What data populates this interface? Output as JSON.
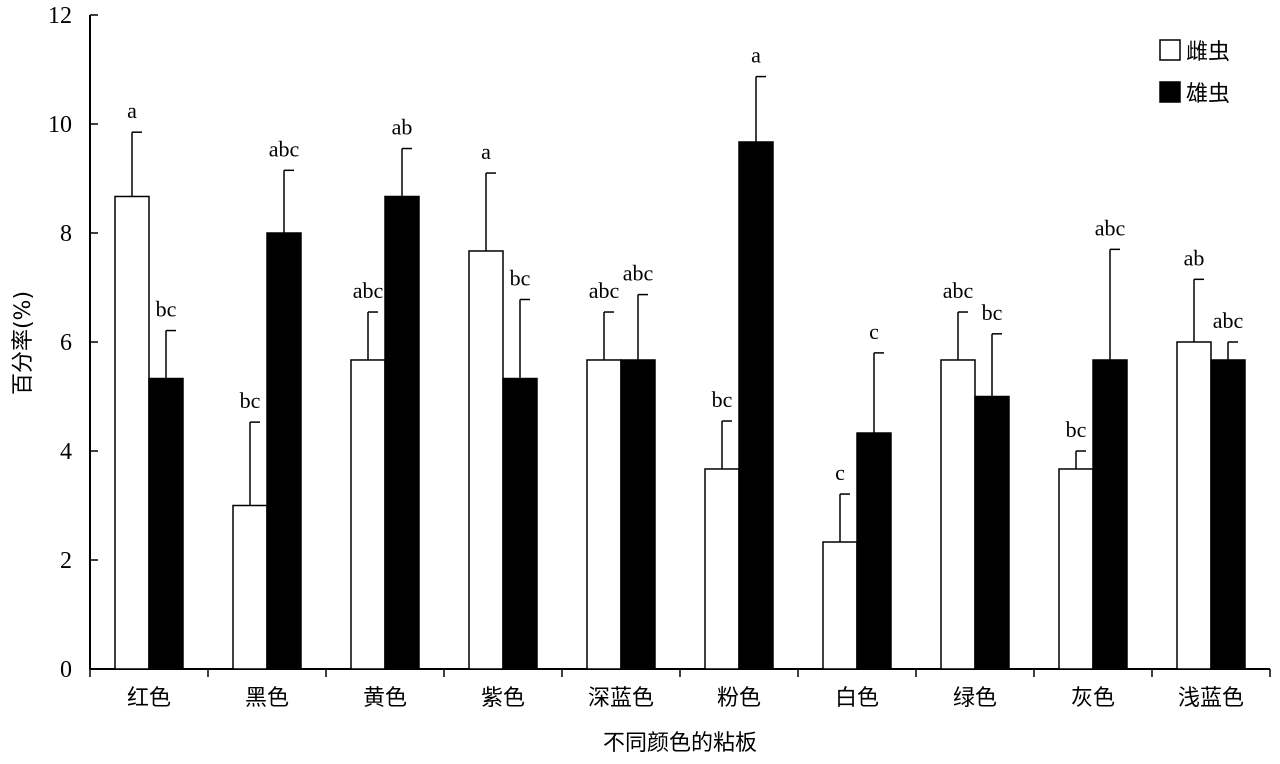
{
  "chart_data": {
    "type": "bar",
    "title": "",
    "xlabel": "不同颜色的粘板",
    "ylabel": "百分率(%)",
    "ylim": [
      0,
      12
    ],
    "yticks": [
      "0",
      "2",
      "4",
      "6",
      "8",
      "10",
      "12"
    ],
    "categories": [
      "红色",
      "黑色",
      "黄色",
      "紫色",
      "深蓝色",
      "粉色",
      "白色",
      "绿色",
      "灰色",
      "浅蓝色"
    ],
    "legend_position": "top-right",
    "series": [
      {
        "name": "雌虫",
        "color": "#ffffff",
        "values": [
          8.67,
          3.0,
          5.67,
          7.67,
          5.67,
          3.67,
          2.33,
          5.67,
          3.67,
          6.0
        ],
        "errors": [
          1.18,
          1.53,
          0.88,
          1.43,
          0.88,
          0.88,
          0.88,
          0.88,
          0.33,
          1.15
        ],
        "labels": [
          "a",
          "bc",
          "abc",
          "a",
          "abc",
          "bc",
          "c",
          "abc",
          "bc",
          "ab"
        ]
      },
      {
        "name": "雄虫",
        "color": "#000000",
        "values": [
          5.33,
          8.0,
          8.67,
          5.33,
          5.67,
          9.67,
          4.33,
          5.0,
          5.67,
          5.67
        ],
        "errors": [
          0.88,
          1.15,
          0.88,
          1.45,
          1.2,
          1.2,
          1.47,
          1.15,
          2.03,
          0.33
        ],
        "labels": [
          "bc",
          "abc",
          "ab",
          "bc",
          "abc",
          "a",
          "c",
          "bc",
          "abc",
          "abc"
        ]
      }
    ]
  }
}
